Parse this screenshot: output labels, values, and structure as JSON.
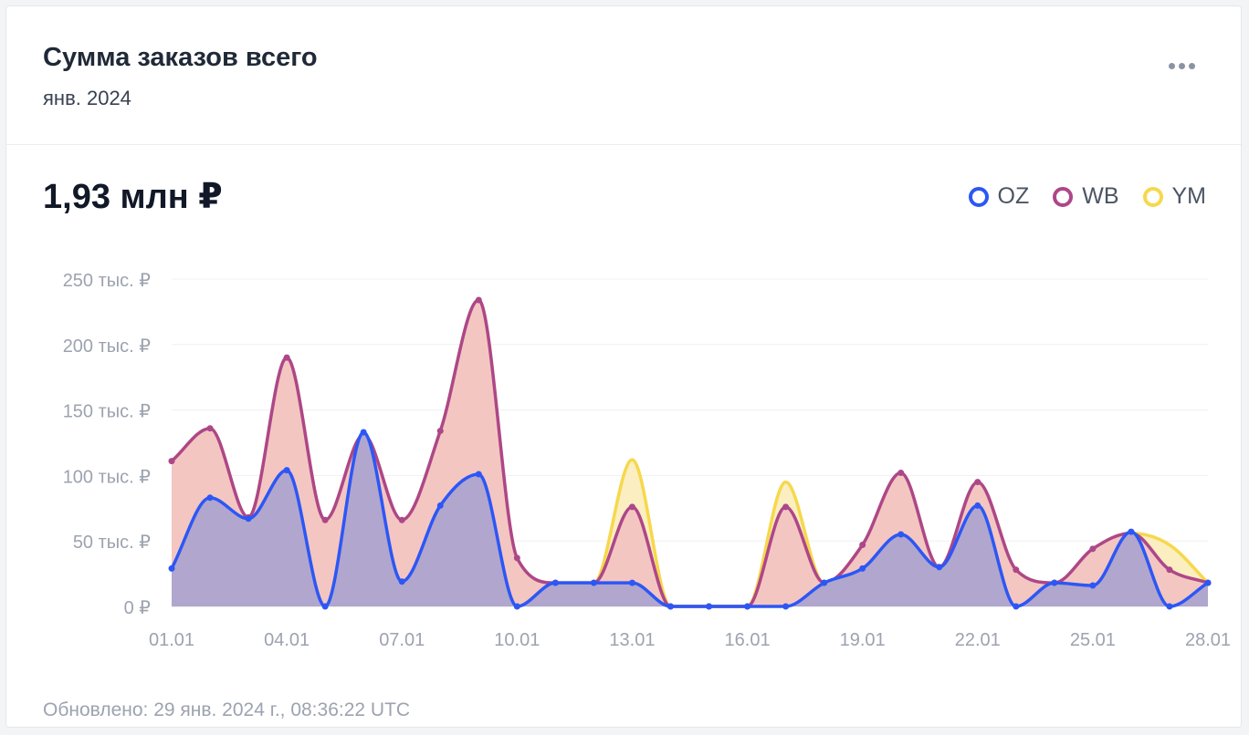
{
  "header": {
    "title": "Сумма заказов всего",
    "subtitle": "янв. 2024",
    "menu_icon": "more-horizontal-icon"
  },
  "summary": {
    "total": "1,93 млн ₽"
  },
  "footer": {
    "updated": "Обновлено: 29 янв. 2024 г., 08:36:22 UTC"
  },
  "chart_data": {
    "type": "area",
    "stacked": false,
    "grid": true,
    "legend_position": "top-right",
    "ylim": [
      0,
      250000
    ],
    "y_ticks": [
      0,
      50000,
      100000,
      150000,
      200000,
      250000
    ],
    "y_tick_labels": [
      "0 ₽",
      "50 тыс. ₽",
      "100 тыс. ₽",
      "150 тыс. ₽",
      "200 тыс. ₽",
      "250 тыс. ₽"
    ],
    "x": [
      "01.01",
      "02.01",
      "03.01",
      "04.01",
      "05.01",
      "06.01",
      "07.01",
      "08.01",
      "09.01",
      "10.01",
      "11.01",
      "12.01",
      "13.01",
      "14.01",
      "15.01",
      "16.01",
      "17.01",
      "18.01",
      "19.01",
      "20.01",
      "21.01",
      "22.01",
      "23.01",
      "24.01",
      "25.01",
      "26.01",
      "27.01",
      "28.01"
    ],
    "x_tick_labels": [
      "01.01",
      "04.01",
      "07.01",
      "10.01",
      "13.01",
      "16.01",
      "19.01",
      "22.01",
      "25.01",
      "28.01"
    ],
    "series": [
      {
        "name": "YM",
        "color": "#f6d84d",
        "fill": "#fbeec0",
        "values": [
          111000,
          136000,
          68000,
          190000,
          66000,
          131000,
          66000,
          134000,
          234000,
          37000,
          18000,
          18000,
          112000,
          0,
          0,
          0,
          95000,
          18000,
          47000,
          102000,
          30000,
          95000,
          28000,
          18000,
          44000,
          56000,
          47000,
          18000
        ]
      },
      {
        "name": "WB",
        "color": "#ad4789",
        "fill": "#f4c6c1",
        "values": [
          111000,
          136000,
          68000,
          190000,
          66000,
          131000,
          66000,
          134000,
          234000,
          37000,
          18000,
          18000,
          76000,
          0,
          0,
          0,
          76000,
          18000,
          47000,
          102000,
          30000,
          95000,
          28000,
          18000,
          44000,
          56000,
          28000,
          18000
        ]
      },
      {
        "name": "OZ",
        "color": "#2c57f5",
        "fill": "#b1a6cd",
        "values": [
          29000,
          83000,
          67000,
          104000,
          0,
          133000,
          19000,
          77000,
          101000,
          0,
          18000,
          18000,
          18000,
          0,
          0,
          0,
          0,
          18000,
          29000,
          55000,
          30000,
          77000,
          0,
          18000,
          16000,
          57000,
          0,
          18000
        ]
      }
    ]
  }
}
